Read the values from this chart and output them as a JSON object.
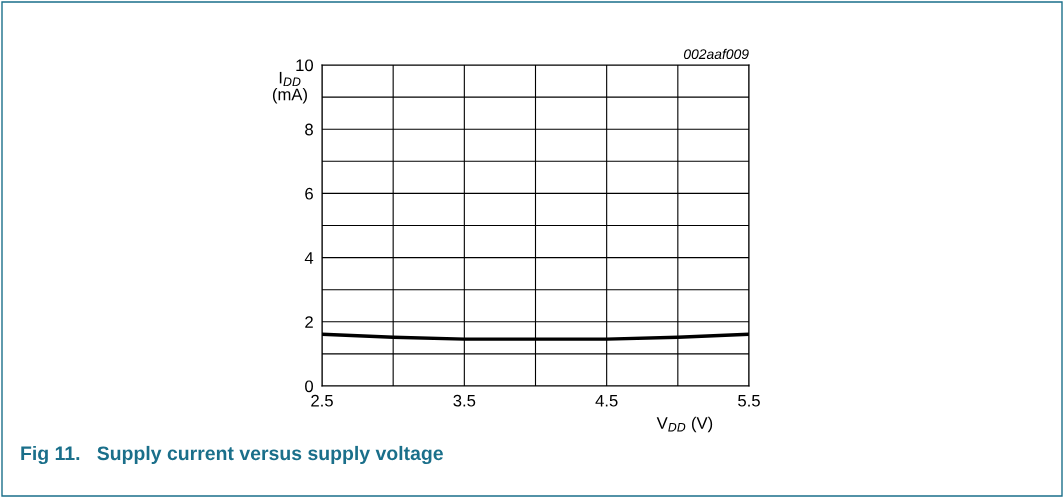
{
  "chart_data": {
    "type": "line",
    "title": "Fig 11.   Supply current versus supply voltage",
    "xlabel": "V$_{DD}$ (V)",
    "ylabel": "I$_{DD}$\n(mA)",
    "annotations": [
      "002aaf009"
    ],
    "x": [
      2.5,
      3.0,
      3.5,
      4.0,
      4.5,
      5.0,
      5.5
    ],
    "series": [
      {
        "color": "#000000",
        "values": [
          1.61,
          1.52,
          1.46,
          1.46,
          1.46,
          1.52,
          1.61
        ]
      }
    ],
    "xlim": [
      2.5,
      5.5
    ],
    "xticks": [
      2.5,
      {
        "value": 3.0,
        "label": null
      },
      3.5,
      {
        "value": 4.0,
        "label": null
      },
      4.5,
      {
        "value": 5.0,
        "label": null
      },
      5.5
    ],
    "ylim": [
      0,
      10
    ],
    "yticks": [
      0,
      {
        "value": 1,
        "label": null
      },
      2,
      {
        "value": 3,
        "label": null
      },
      4,
      {
        "value": 5,
        "label": null
      },
      6,
      {
        "value": 7,
        "label": null
      },
      8,
      {
        "value": 9,
        "label": null
      },
      10
    ],
    "grid": true,
    "line_style": "solid",
    "marker": "none"
  }
}
